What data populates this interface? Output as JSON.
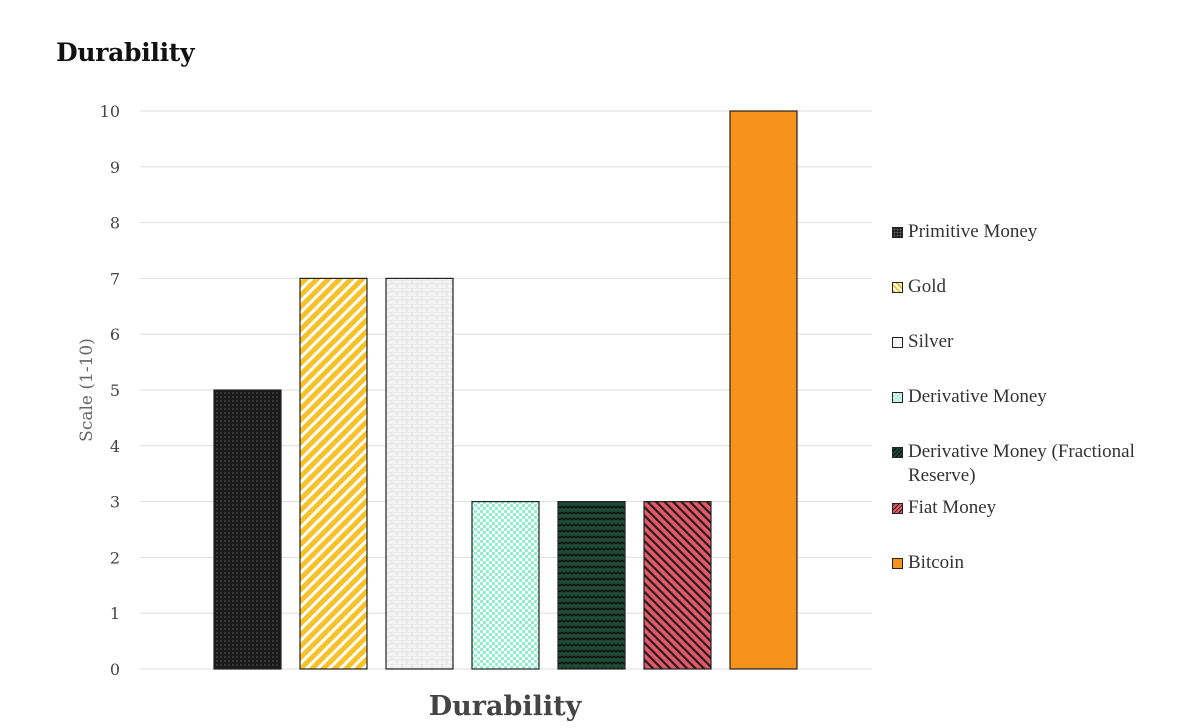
{
  "heading": "Durability",
  "chart_data": {
    "type": "bar",
    "title": "Durability",
    "xlabel": "Durability",
    "ylabel": "Scale (1-10)",
    "ylim": [
      0,
      10
    ],
    "yticks": [
      0,
      1,
      2,
      3,
      4,
      5,
      6,
      7,
      8,
      9,
      10
    ],
    "grid": true,
    "legend_position": "right",
    "series": [
      {
        "name": "Primitive Money",
        "values": [
          5
        ],
        "color": "#1a1a1a",
        "pattern": "dots-dark"
      },
      {
        "name": "Gold",
        "values": [
          7
        ],
        "color": "#f7c12a",
        "pattern": "diagonal-stripes"
      },
      {
        "name": "Silver",
        "values": [
          7
        ],
        "color": "#f2f2f2",
        "pattern": "bricks"
      },
      {
        "name": "Derivative Money",
        "values": [
          3
        ],
        "color": "#8ff0cc",
        "pattern": "checker"
      },
      {
        "name": "Derivative Money (Fractional Reserve)",
        "values": [
          3
        ],
        "color": "#1f4a3a",
        "pattern": "zigzag"
      },
      {
        "name": "Fiat Money",
        "values": [
          3
        ],
        "color": "#e05a6a",
        "pattern": "diagonal-dense"
      },
      {
        "name": "Bitcoin",
        "values": [
          10
        ],
        "color": "#f7931a",
        "pattern": "solid"
      }
    ]
  }
}
